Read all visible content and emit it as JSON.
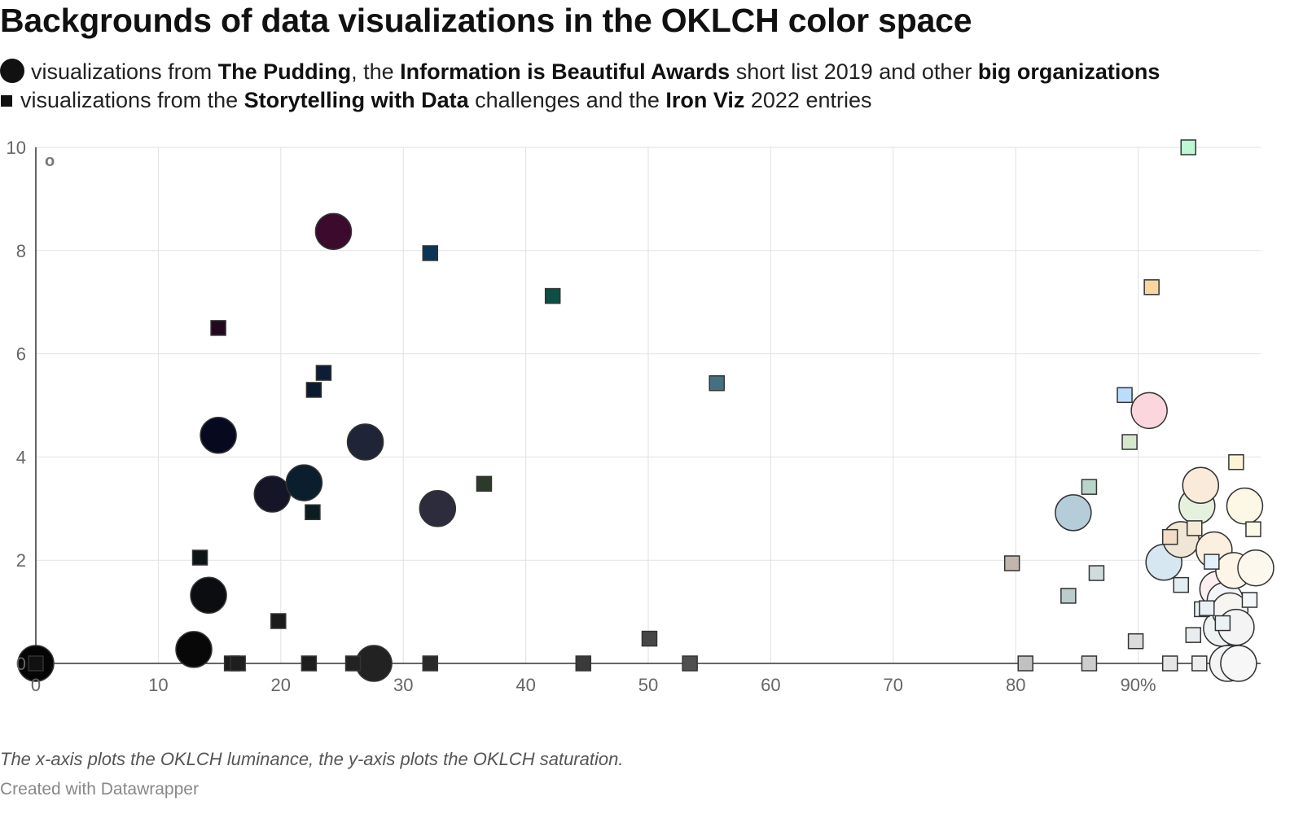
{
  "title": "Backgrounds of data visualizations in the OKLCH color space",
  "legend": {
    "row1": {
      "t1": "visualizations from ",
      "b1": "The Pudding",
      "t2": ", the ",
      "b2": "Information is Beautiful Awards",
      "t3": " short list 2019 and other ",
      "b3": "big organizations"
    },
    "row2": {
      "t1": "visualizations from the ",
      "b1": "Storytelling with Data",
      "t2": " challenges and the ",
      "b2": "Iron Viz",
      "t3": " 2022 entries"
    }
  },
  "chart_data": {
    "type": "scatter",
    "xlim": [
      0,
      100
    ],
    "ylim": [
      0,
      10
    ],
    "x_ticks": [
      0,
      10,
      20,
      30,
      40,
      50,
      60,
      70,
      80,
      90
    ],
    "x_tick_labels": [
      "0",
      "10",
      "20",
      "30",
      "40",
      "50",
      "60",
      "70",
      "80",
      "90%"
    ],
    "y_ticks": [
      0,
      2,
      4,
      6,
      8,
      10
    ],
    "y_tick_labels": [
      "0",
      "2",
      "4",
      "6",
      "8",
      "10"
    ],
    "grid": true,
    "corner_label": "o",
    "series": [
      {
        "shape": "circle",
        "points": [
          {
            "x": 0,
            "y": 0,
            "color": "#050505"
          },
          {
            "x": 12.9,
            "y": 0.27,
            "color": "#080808"
          },
          {
            "x": 14.1,
            "y": 1.32,
            "color": "#0b0d10"
          },
          {
            "x": 14.9,
            "y": 4.42,
            "color": "#070a1e"
          },
          {
            "x": 19.3,
            "y": 3.28,
            "color": "#141627"
          },
          {
            "x": 21.9,
            "y": 3.5,
            "color": "#0b1e2d"
          },
          {
            "x": 24.3,
            "y": 8.37,
            "color": "#3b0a2c"
          },
          {
            "x": 26.9,
            "y": 4.29,
            "color": "#1f2536"
          },
          {
            "x": 27.6,
            "y": 0,
            "color": "#222222"
          },
          {
            "x": 32.8,
            "y": 3,
            "color": "#2c2c3c"
          },
          {
            "x": 84.7,
            "y": 2.92,
            "color": "#b5ccd9"
          },
          {
            "x": 90.9,
            "y": 4.9,
            "color": "#fbd6dd"
          },
          {
            "x": 92.1,
            "y": 1.96,
            "color": "#d7e7f2"
          },
          {
            "x": 93.5,
            "y": 2.4,
            "color": "#efe6d6"
          },
          {
            "x": 94.8,
            "y": 3.05,
            "color": "#e5f0dd"
          },
          {
            "x": 95.1,
            "y": 3.45,
            "color": "#faeada"
          },
          {
            "x": 96.2,
            "y": 2.2,
            "color": "#fbefe0"
          },
          {
            "x": 96.5,
            "y": 1.44,
            "color": "#fbeff2"
          },
          {
            "x": 96.8,
            "y": 0.68,
            "color": "#eef2f3"
          },
          {
            "x": 97.1,
            "y": 1.22,
            "color": "#f3f6f8"
          },
          {
            "x": 97.3,
            "y": 0,
            "color": "#f2f4f5"
          },
          {
            "x": 97.5,
            "y": 1.02,
            "color": "#f6f5f1"
          },
          {
            "x": 97.8,
            "y": 1.8,
            "color": "#fdf5e8"
          },
          {
            "x": 98.0,
            "y": 0.7,
            "color": "#f4f4f4"
          },
          {
            "x": 98.2,
            "y": 0,
            "color": "#f7f7f7"
          },
          {
            "x": 98.7,
            "y": 3.05,
            "color": "#fdf8e6"
          },
          {
            "x": 99.6,
            "y": 1.85,
            "color": "#fcf8ee"
          }
        ]
      },
      {
        "shape": "square",
        "points": [
          {
            "x": 0,
            "y": 0,
            "color": "#111111"
          },
          {
            "x": 13.4,
            "y": 2.05,
            "color": "#0c1416"
          },
          {
            "x": 14.9,
            "y": 6.5,
            "color": "#22081e"
          },
          {
            "x": 16.0,
            "y": 0,
            "color": "#1c1c1c"
          },
          {
            "x": 16.5,
            "y": 0,
            "color": "#1e1e1e"
          },
          {
            "x": 19.8,
            "y": 0.82,
            "color": "#1b1b1b"
          },
          {
            "x": 22.3,
            "y": 0,
            "color": "#1d1d1d"
          },
          {
            "x": 22.6,
            "y": 2.93,
            "color": "#0c1c20"
          },
          {
            "x": 22.7,
            "y": 5.3,
            "color": "#0a1a30"
          },
          {
            "x": 23.5,
            "y": 5.63,
            "color": "#0d1d35"
          },
          {
            "x": 25.9,
            "y": 0,
            "color": "#222222"
          },
          {
            "x": 32.2,
            "y": 0,
            "color": "#2a2a2a"
          },
          {
            "x": 32.2,
            "y": 7.95,
            "color": "#0a3559"
          },
          {
            "x": 36.6,
            "y": 3.48,
            "color": "#2b3a2b"
          },
          {
            "x": 42.2,
            "y": 7.12,
            "color": "#0d4f44"
          },
          {
            "x": 44.7,
            "y": 0,
            "color": "#3a3a3a"
          },
          {
            "x": 50.1,
            "y": 0.48,
            "color": "#474747"
          },
          {
            "x": 53.4,
            "y": 0,
            "color": "#4f4f4f"
          },
          {
            "x": 55.6,
            "y": 5.43,
            "color": "#457081"
          },
          {
            "x": 79.7,
            "y": 1.94,
            "color": "#c2b5ae"
          },
          {
            "x": 80.8,
            "y": 0,
            "color": "#c1c1c1"
          },
          {
            "x": 84.3,
            "y": 1.31,
            "color": "#bccbcb"
          },
          {
            "x": 86.0,
            "y": 0,
            "color": "#cdcdcd"
          },
          {
            "x": 86.0,
            "y": 3.42,
            "color": "#b9d5c9"
          },
          {
            "x": 86.6,
            "y": 1.75,
            "color": "#cfdcdb"
          },
          {
            "x": 88.9,
            "y": 5.2,
            "color": "#bcdcfb"
          },
          {
            "x": 89.3,
            "y": 4.29,
            "color": "#d5e8cc"
          },
          {
            "x": 89.8,
            "y": 0.43,
            "color": "#dcdcdc"
          },
          {
            "x": 91.1,
            "y": 7.29,
            "color": "#f9d5a2"
          },
          {
            "x": 92.6,
            "y": 0,
            "color": "#e6e6e6"
          },
          {
            "x": 92.6,
            "y": 2.45,
            "color": "#f2dcc8"
          },
          {
            "x": 93.5,
            "y": 1.52,
            "color": "#e3eef2"
          },
          {
            "x": 94.1,
            "y": 10,
            "color": "#bdf7d4"
          },
          {
            "x": 94.5,
            "y": 0.55,
            "color": "#e9edf0"
          },
          {
            "x": 94.6,
            "y": 2.62,
            "color": "#f4ead6"
          },
          {
            "x": 95.0,
            "y": 0,
            "color": "#eeeeee"
          },
          {
            "x": 95.2,
            "y": 1.05,
            "color": "#e7f0f5"
          },
          {
            "x": 95.6,
            "y": 1.07,
            "color": "#e9f0f6"
          },
          {
            "x": 96.0,
            "y": 1.97,
            "color": "#e4f1fb"
          },
          {
            "x": 96.9,
            "y": 0.78,
            "color": "#eaf2f5"
          },
          {
            "x": 98.0,
            "y": 3.9,
            "color": "#fdf4d6"
          },
          {
            "x": 99.1,
            "y": 1.23,
            "color": "#f4f7fa"
          },
          {
            "x": 99.4,
            "y": 2.6,
            "color": "#fbf9e8"
          }
        ]
      }
    ]
  },
  "note": "The x-axis plots the OKLCH luminance, the y-axis plots the OKLCH saturation.",
  "credit": "Created with Datawrapper"
}
